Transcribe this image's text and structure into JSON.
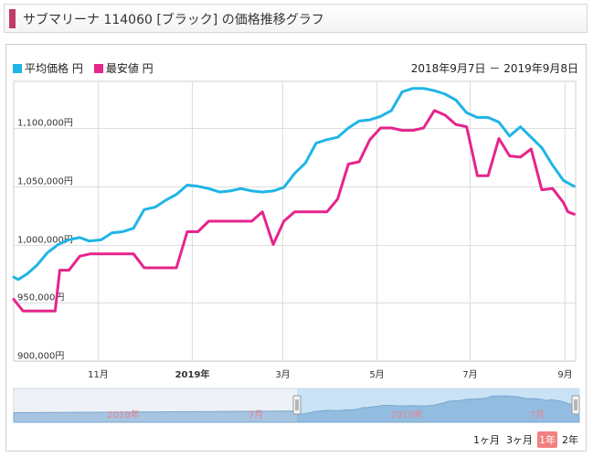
{
  "header": {
    "title": "サブマリーナ 114060 [ブラック] の価格推移グラフ",
    "accent": "#c0396b"
  },
  "legend": [
    {
      "name": "平均価格 円",
      "color": "#1fb5e6"
    },
    {
      "name": "最安値 円",
      "color": "#e6248c"
    }
  ],
  "date_range": "2018年9月7日 － 2019年9月8日",
  "range_buttons": [
    {
      "label": "1ヶ月",
      "active": false
    },
    {
      "label": "3ヶ月",
      "active": false
    },
    {
      "label": "1年",
      "active": true
    },
    {
      "label": "2年",
      "active": false
    }
  ],
  "navigator": {
    "labels": [
      "2018年",
      "7月",
      "2019年",
      "7月"
    ]
  },
  "chart_data": {
    "type": "line",
    "ylim": [
      900000,
      1140000
    ],
    "ytick_values": [
      900000,
      950000,
      1000000,
      1050000,
      1100000
    ],
    "ytick_labels": [
      "900,000円",
      "950,000円",
      "1,000,000円",
      "1,050,000円",
      "1,100,000円"
    ],
    "xlim": [
      "2018-09-07",
      "2019-09-08"
    ],
    "xticks": [
      {
        "date": "2018-11-01",
        "label": "11月",
        "bold": false
      },
      {
        "date": "2019-01-01",
        "label": "2019年",
        "bold": true
      },
      {
        "date": "2019-03-01",
        "label": "3月",
        "bold": false
      },
      {
        "date": "2019-05-01",
        "label": "5月",
        "bold": false
      },
      {
        "date": "2019-07-01",
        "label": "7月",
        "bold": false
      },
      {
        "date": "2019-09-01",
        "label": "9月",
        "bold": false
      }
    ],
    "grid": true,
    "series": [
      {
        "name": "平均価格 円",
        "color": "#1fb5e6",
        "points": [
          [
            "2018-09-07",
            972000
          ],
          [
            "2018-09-10",
            970000
          ],
          [
            "2018-09-16",
            975000
          ],
          [
            "2018-09-22",
            982000
          ],
          [
            "2018-09-29",
            993000
          ],
          [
            "2018-10-06",
            1000000
          ],
          [
            "2018-10-13",
            1004000
          ],
          [
            "2018-10-20",
            1006000
          ],
          [
            "2018-10-26",
            1003000
          ],
          [
            "2018-11-03",
            1004000
          ],
          [
            "2018-11-10",
            1010000
          ],
          [
            "2018-11-17",
            1011000
          ],
          [
            "2018-11-24",
            1014000
          ],
          [
            "2018-12-01",
            1030000
          ],
          [
            "2018-12-08",
            1032000
          ],
          [
            "2018-12-15",
            1038000
          ],
          [
            "2018-12-22",
            1043000
          ],
          [
            "2018-12-29",
            1051000
          ],
          [
            "2019-01-05",
            1050000
          ],
          [
            "2019-01-12",
            1048000
          ],
          [
            "2019-01-19",
            1045000
          ],
          [
            "2019-01-26",
            1046000
          ],
          [
            "2019-02-02",
            1048000
          ],
          [
            "2019-02-09",
            1046000
          ],
          [
            "2019-02-16",
            1045000
          ],
          [
            "2019-02-23",
            1046000
          ],
          [
            "2019-03-02",
            1049000
          ],
          [
            "2019-03-09",
            1061000
          ],
          [
            "2019-03-16",
            1070000
          ],
          [
            "2019-03-23",
            1087000
          ],
          [
            "2019-03-30",
            1090000
          ],
          [
            "2019-04-06",
            1092000
          ],
          [
            "2019-04-13",
            1100000
          ],
          [
            "2019-04-20",
            1106000
          ],
          [
            "2019-04-27",
            1107000
          ],
          [
            "2019-05-04",
            1110000
          ],
          [
            "2019-05-11",
            1115000
          ],
          [
            "2019-05-18",
            1131000
          ],
          [
            "2019-05-25",
            1134000
          ],
          [
            "2019-06-01",
            1134000
          ],
          [
            "2019-06-08",
            1132000
          ],
          [
            "2019-06-15",
            1129000
          ],
          [
            "2019-06-22",
            1124000
          ],
          [
            "2019-06-29",
            1113000
          ],
          [
            "2019-07-06",
            1109000
          ],
          [
            "2019-07-13",
            1109000
          ],
          [
            "2019-07-20",
            1105000
          ],
          [
            "2019-07-27",
            1093000
          ],
          [
            "2019-08-03",
            1101000
          ],
          [
            "2019-08-10",
            1092000
          ],
          [
            "2019-08-17",
            1083000
          ],
          [
            "2019-08-24",
            1068000
          ],
          [
            "2019-08-31",
            1055000
          ],
          [
            "2019-09-07",
            1050000
          ]
        ]
      },
      {
        "name": "最安値 円",
        "color": "#e6248c",
        "points": [
          [
            "2018-09-07",
            953000
          ],
          [
            "2018-09-13",
            943000
          ],
          [
            "2018-10-04",
            943000
          ],
          [
            "2018-10-07",
            978000
          ],
          [
            "2018-10-13",
            978000
          ],
          [
            "2018-10-20",
            990000
          ],
          [
            "2018-10-27",
            992000
          ],
          [
            "2018-11-10",
            992000
          ],
          [
            "2018-11-24",
            992000
          ],
          [
            "2018-12-01",
            980000
          ],
          [
            "2018-12-22",
            980000
          ],
          [
            "2018-12-29",
            1011000
          ],
          [
            "2019-01-05",
            1011000
          ],
          [
            "2019-01-12",
            1020000
          ],
          [
            "2019-02-09",
            1020000
          ],
          [
            "2019-02-16",
            1028000
          ],
          [
            "2019-02-23",
            1000000
          ],
          [
            "2019-03-02",
            1020000
          ],
          [
            "2019-03-09",
            1028000
          ],
          [
            "2019-03-16",
            1028000
          ],
          [
            "2019-03-30",
            1028000
          ],
          [
            "2019-04-06",
            1039000
          ],
          [
            "2019-04-13",
            1069000
          ],
          [
            "2019-04-20",
            1071000
          ],
          [
            "2019-04-27",
            1090000
          ],
          [
            "2019-05-04",
            1100000
          ],
          [
            "2019-05-11",
            1100000
          ],
          [
            "2019-05-18",
            1098000
          ],
          [
            "2019-05-25",
            1098000
          ],
          [
            "2019-06-01",
            1100000
          ],
          [
            "2019-06-08",
            1115000
          ],
          [
            "2019-06-15",
            1111000
          ],
          [
            "2019-06-22",
            1103000
          ],
          [
            "2019-06-29",
            1101000
          ],
          [
            "2019-07-06",
            1059000
          ],
          [
            "2019-07-13",
            1059000
          ],
          [
            "2019-07-20",
            1091000
          ],
          [
            "2019-07-27",
            1076000
          ],
          [
            "2019-08-03",
            1075000
          ],
          [
            "2019-08-10",
            1082000
          ],
          [
            "2019-08-17",
            1047000
          ],
          [
            "2019-08-24",
            1048000
          ],
          [
            "2019-08-31",
            1036000
          ],
          [
            "2019-09-03",
            1028000
          ],
          [
            "2019-09-07",
            1026000
          ]
        ]
      }
    ]
  }
}
